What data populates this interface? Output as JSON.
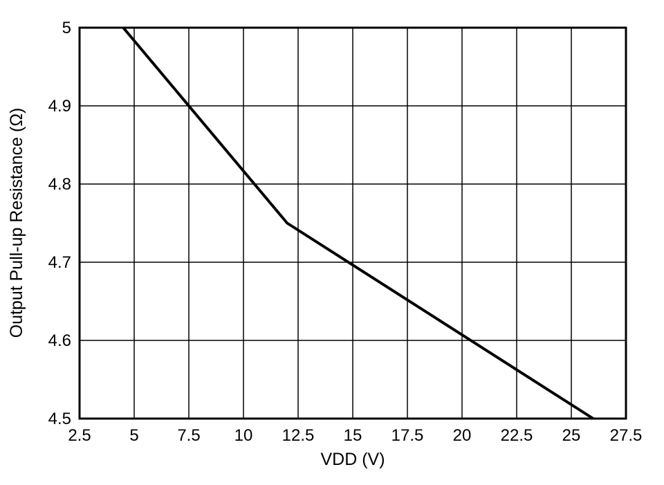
{
  "chart_data": {
    "type": "line",
    "title": "",
    "xlabel": "VDD (V)",
    "ylabel": "Output Pull-up Resistance (Ω)",
    "xlim": [
      2.5,
      27.5
    ],
    "ylim": [
      4.5,
      5
    ],
    "grid": true,
    "legend": "none",
    "xticks": {
      "values": [
        2.5,
        5,
        7.5,
        10,
        12.5,
        15,
        17.5,
        20,
        22.5,
        25,
        27.5
      ],
      "labels": [
        "2.5",
        "5",
        "7.5",
        "10",
        "12.5",
        "15",
        "17.5",
        "20",
        "22.5",
        "25",
        "27.5"
      ]
    },
    "yticks": {
      "values": [
        4.5,
        4.6,
        4.7,
        4.8,
        4.9,
        5
      ],
      "labels": [
        "4.5",
        "4.6",
        "4.7",
        "4.8",
        "4.9",
        "5"
      ]
    },
    "series": [
      {
        "name": "Output Pull-up Resistance",
        "color": "#000000",
        "x": [
          4.5,
          12,
          26
        ],
        "y": [
          5.0,
          4.75,
          4.5
        ]
      }
    ]
  },
  "colors": {
    "background": "#ffffff",
    "grid": "#000000",
    "border": "#000000",
    "line": "#000000",
    "text": "#000000"
  }
}
